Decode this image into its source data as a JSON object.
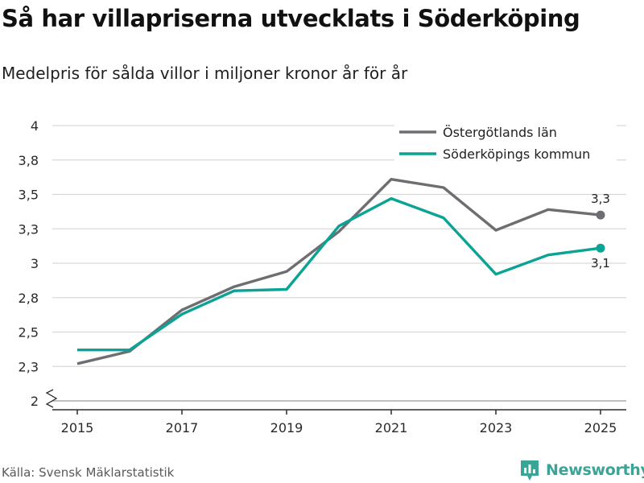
{
  "title": "Så har villapriserna utvecklats i Söderköping",
  "subtitle": "Medelpris för sålda villor i miljoner kronor år för år",
  "source": "Källa: Svensk Mäklarstatistik",
  "brand": "Newsworthy",
  "colors": {
    "county": "#6e6d72",
    "municipality": "#0aa395",
    "grid": "#d9d9d9",
    "axis": "#2b2b2b",
    "brand": "#3aa597"
  },
  "chart_data": {
    "type": "line",
    "title": "Så har villapriserna utvecklats i Söderköping",
    "subtitle": "Medelpris för sålda villor i miljoner kronor år för år",
    "xlabel": "",
    "ylabel": "",
    "x": [
      2015,
      2016,
      2017,
      2018,
      2019,
      2020,
      2021,
      2022,
      2023,
      2024,
      2025
    ],
    "ylim": [
      2,
      4
    ],
    "y_axis_break": true,
    "y_ticks": [
      2,
      2.25,
      2.5,
      2.75,
      3,
      3.25,
      3.5,
      3.75,
      4
    ],
    "y_tick_labels": [
      "2",
      "2,3",
      "2,5",
      "2,8",
      "3",
      "3,3",
      "3,5",
      "3,8",
      "4"
    ],
    "x_ticks": [
      2015,
      2017,
      2019,
      2021,
      2023,
      2025
    ],
    "x_tick_labels": [
      "2015",
      "2017",
      "2019",
      "2021",
      "2023",
      "2025"
    ],
    "grid": true,
    "legend_position": "top-right",
    "series": [
      {
        "name": "Östergötlands län",
        "color": "#6e6d72",
        "values": [
          2.27,
          2.36,
          2.66,
          2.83,
          2.94,
          3.23,
          3.61,
          3.55,
          3.24,
          3.39,
          3.35
        ],
        "end_label": "3,3",
        "end_label_position": "above"
      },
      {
        "name": "Söderköpings kommun",
        "color": "#0aa395",
        "values": [
          2.37,
          2.37,
          2.63,
          2.8,
          2.81,
          3.27,
          3.47,
          3.33,
          2.92,
          3.06,
          3.11
        ],
        "end_label": "3,1",
        "end_label_position": "below"
      }
    ]
  }
}
